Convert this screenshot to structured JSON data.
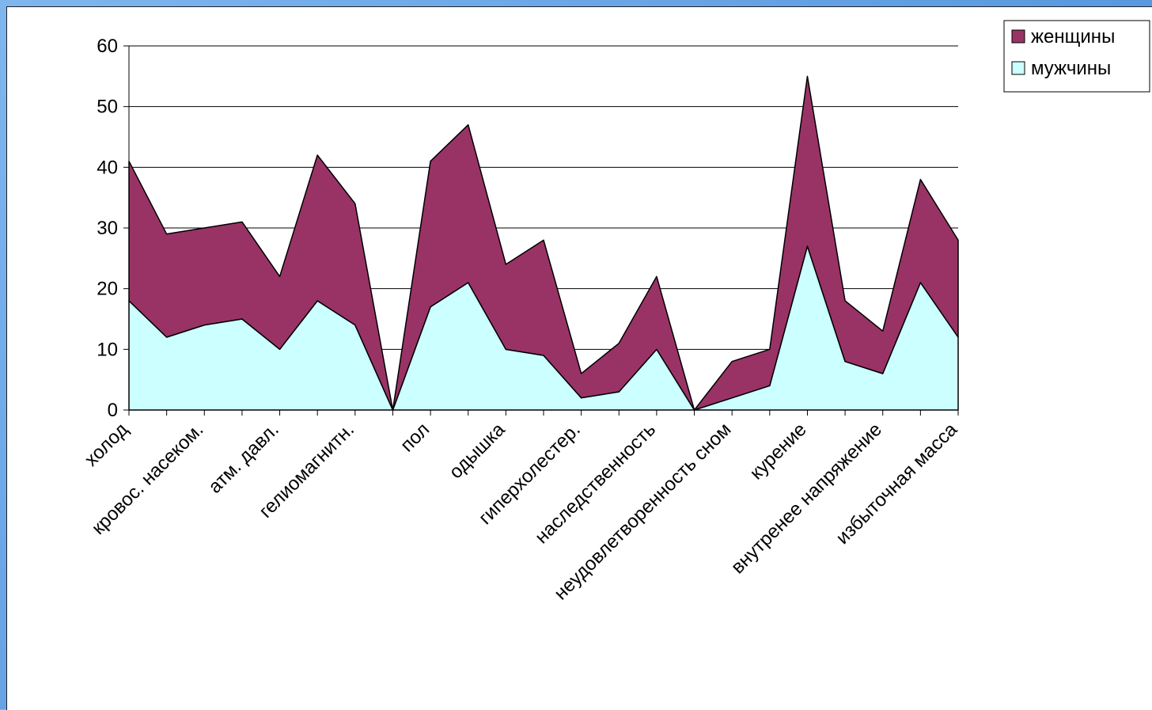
{
  "chart_data": {
    "type": "stacked-area",
    "categories": [
      "холод",
      null,
      "кровос. насеком.",
      null,
      "атм. давл.",
      null,
      "гелиомагнитн.",
      null,
      "пол",
      null,
      "одышка",
      null,
      "гиперхолестер.",
      null,
      "наследственность",
      null,
      "неудовлетворенность сном",
      null,
      "курение",
      null,
      "внутренее напряжение",
      null,
      "избыточная масса"
    ],
    "series": [
      {
        "name": "мужчины",
        "color": "#ccffff",
        "values": [
          18,
          12,
          14,
          15,
          10,
          18,
          14,
          0,
          17,
          21,
          10,
          9,
          2,
          3,
          10,
          0,
          2,
          4,
          27,
          8,
          6,
          21,
          12
        ]
      },
      {
        "name": "женщины",
        "color": "#993366",
        "values": [
          23,
          17,
          16,
          16,
          12,
          24,
          20,
          0,
          24,
          26,
          14,
          19,
          4,
          8,
          12,
          0,
          6,
          6,
          28,
          10,
          7,
          17,
          16
        ]
      }
    ],
    "ylim": [
      0,
      60
    ],
    "yticks": [
      0,
      10,
      20,
      30,
      40,
      50,
      60
    ],
    "grid": true,
    "legend": "top-right"
  }
}
